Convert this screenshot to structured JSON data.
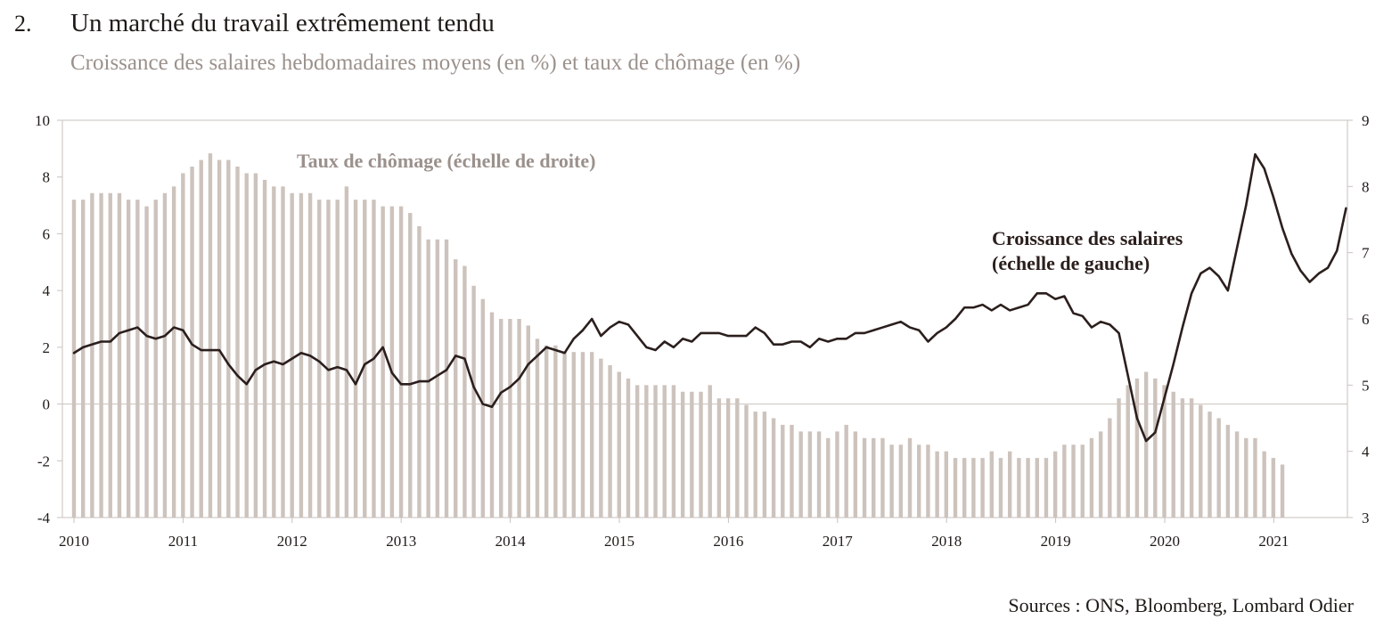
{
  "header": {
    "number": "2.",
    "title": "Un marché du travail extrêmement tendu",
    "subtitle": "Croissance des salaires hebdomadaires moyens (en %) et taux de chômage (en %)"
  },
  "sources": "Sources : ONS, Bloomberg, Lombard Odier",
  "colors": {
    "bars": "#cdc3bd",
    "line": "#2b1f1d",
    "axis": "#c9c2bd",
    "bar_label": "#9b918c",
    "text": "#1f1a17"
  },
  "chart_data": {
    "type": "bar+line",
    "title": "Un marché du travail extrêmement tendu",
    "subtitle": "Croissance des salaires hebdomadaires moyens (en %) et taux de chômage (en %)",
    "x_start": 2010.0,
    "x_step": 0.0833,
    "x_tick_labels": [
      "2010",
      "2011",
      "2012",
      "2013",
      "2014",
      "2015",
      "2016",
      "2017",
      "2018",
      "2019",
      "2020",
      "2021"
    ],
    "y_left": {
      "range": [
        -4,
        10
      ],
      "ticks": [
        "10",
        "8",
        "6",
        "4",
        "2",
        "0",
        "-2",
        "-4"
      ]
    },
    "y_right": {
      "range": [
        3,
        9
      ],
      "ticks": [
        "9",
        "8",
        "7",
        "6",
        "5",
        "4",
        "3"
      ]
    },
    "annotations": {
      "bars": "Taux de chômage (échelle de droite)",
      "line_1": "Croissance des salaires",
      "line_2": "(échelle de gauche)"
    },
    "series": [
      {
        "name": "Taux de chômage (échelle de droite)",
        "type": "bar",
        "axis": "right",
        "values": [
          7.8,
          7.8,
          7.9,
          7.9,
          7.9,
          7.9,
          7.8,
          7.8,
          7.7,
          7.8,
          7.9,
          8.0,
          8.2,
          8.3,
          8.4,
          8.5,
          8.4,
          8.4,
          8.3,
          8.2,
          8.2,
          8.1,
          8.0,
          8.0,
          7.9,
          7.9,
          7.9,
          7.8,
          7.8,
          7.8,
          8.0,
          7.8,
          7.8,
          7.8,
          7.7,
          7.7,
          7.7,
          7.6,
          7.4,
          7.2,
          7.2,
          7.2,
          6.9,
          6.8,
          6.5,
          6.3,
          6.1,
          6.0,
          6.0,
          6.0,
          5.9,
          5.7,
          5.6,
          5.6,
          5.5,
          5.5,
          5.5,
          5.5,
          5.4,
          5.3,
          5.2,
          5.1,
          5.0,
          5.0,
          5.0,
          5.0,
          5.0,
          4.9,
          4.9,
          4.9,
          5.0,
          4.8,
          4.8,
          4.8,
          4.7,
          4.6,
          4.6,
          4.5,
          4.4,
          4.4,
          4.3,
          4.3,
          4.3,
          4.2,
          4.3,
          4.4,
          4.3,
          4.2,
          4.2,
          4.2,
          4.1,
          4.1,
          4.2,
          4.1,
          4.1,
          4.0,
          4.0,
          3.9,
          3.9,
          3.9,
          3.9,
          4.0,
          3.9,
          4.0,
          3.9,
          3.9,
          3.9,
          3.9,
          4.0,
          4.1,
          4.1,
          4.1,
          4.2,
          4.3,
          4.5,
          4.8,
          5.0,
          5.1,
          5.2,
          5.1,
          5.0,
          4.9,
          4.8,
          4.8,
          4.7,
          4.6,
          4.5,
          4.4,
          4.3,
          4.2,
          4.2,
          4.0,
          3.9,
          3.8
        ]
      },
      {
        "name": "Croissance des salaires (échelle de gauche)",
        "type": "line",
        "axis": "left",
        "values": [
          1.8,
          2.0,
          2.1,
          2.2,
          2.2,
          2.5,
          2.6,
          2.7,
          2.4,
          2.3,
          2.4,
          2.7,
          2.6,
          2.1,
          1.9,
          1.9,
          1.9,
          1.4,
          1.0,
          0.7,
          1.2,
          1.4,
          1.5,
          1.4,
          1.6,
          1.8,
          1.7,
          1.5,
          1.2,
          1.3,
          1.2,
          0.7,
          1.4,
          1.6,
          2.0,
          1.1,
          0.7,
          0.7,
          0.8,
          0.8,
          1.0,
          1.2,
          1.7,
          1.6,
          0.6,
          0.0,
          -0.1,
          0.4,
          0.6,
          0.9,
          1.4,
          1.7,
          2.0,
          1.9,
          1.8,
          2.3,
          2.6,
          3.0,
          2.4,
          2.7,
          2.9,
          2.8,
          2.4,
          2.0,
          1.9,
          2.2,
          2.0,
          2.3,
          2.2,
          2.5,
          2.5,
          2.5,
          2.4,
          2.4,
          2.4,
          2.7,
          2.5,
          2.1,
          2.1,
          2.2,
          2.2,
          2.0,
          2.3,
          2.2,
          2.3,
          2.3,
          2.5,
          2.5,
          2.6,
          2.7,
          2.8,
          2.9,
          2.7,
          2.6,
          2.2,
          2.5,
          2.7,
          3.0,
          3.4,
          3.4,
          3.5,
          3.3,
          3.5,
          3.3,
          3.4,
          3.5,
          3.9,
          3.9,
          3.7,
          3.8,
          3.2,
          3.1,
          2.7,
          2.9,
          2.8,
          2.5,
          1.0,
          -0.5,
          -1.3,
          -1.0,
          0.2,
          1.4,
          2.7,
          3.9,
          4.6,
          4.8,
          4.5,
          4.0,
          5.5,
          7.0,
          8.8,
          8.3,
          7.3,
          6.2,
          5.3,
          4.7,
          4.3,
          4.6,
          4.8,
          5.4,
          6.9
        ]
      }
    ]
  }
}
